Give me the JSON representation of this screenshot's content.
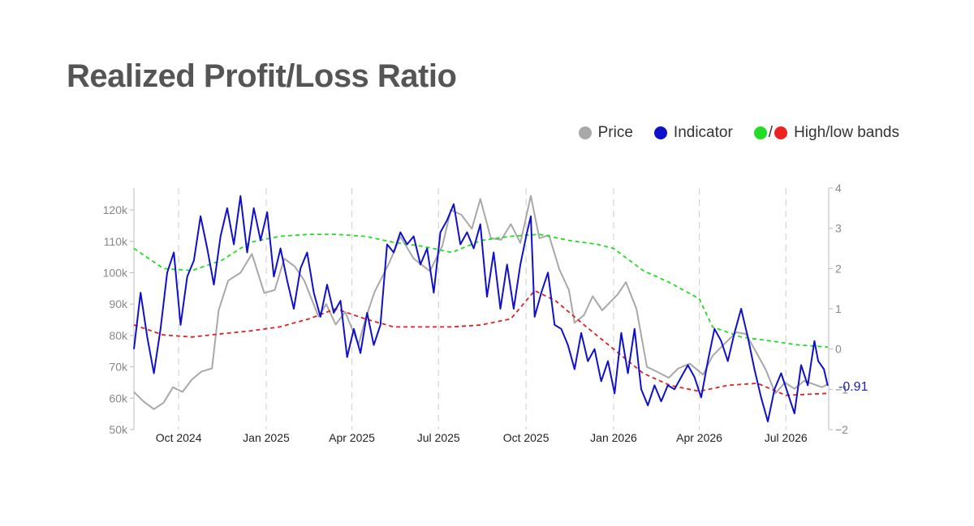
{
  "title": "Realized Profit/Loss Ratio",
  "legend": {
    "price_label": "Price",
    "indicator_label": "Indicator",
    "bands_label": "High/low bands",
    "bands_separator": "/"
  },
  "colors": {
    "price": "#a8a8a8",
    "indicator": "#1010cc",
    "high_band": "#22dd22",
    "low_band": "#dd2222",
    "axis": "#bbbbbb",
    "grid": "#d4d4d4"
  },
  "chart_data": {
    "type": "line",
    "x_ticks": [
      "Oct 2024",
      "Jan 2025",
      "Apr 2025",
      "Jul 2025",
      "Oct 2025",
      "Jan 2026",
      "Apr 2026",
      "Jul 2026"
    ],
    "y_left_ticks": [
      "50k",
      "60k",
      "70k",
      "80k",
      "90k",
      "100k",
      "110k",
      "120k"
    ],
    "y_left_range": [
      50000,
      127000
    ],
    "y_right_ticks": [
      "−2",
      "−1",
      "0",
      "1",
      "2",
      "3",
      "4"
    ],
    "y_right_range": [
      -2,
      4
    ],
    "x_range": [
      "2024-08-15",
      "2026-08-15"
    ],
    "grid": "vertical dashed at x ticks",
    "legend_position": "top-right",
    "end_label": "-0.91",
    "series": [
      {
        "name": "Price",
        "axis": "left",
        "points": [
          [
            "2024-08-15",
            62000
          ],
          [
            "2024-08-25",
            59000
          ],
          [
            "2024-09-05",
            56500
          ],
          [
            "2024-09-15",
            58500
          ],
          [
            "2024-09-25",
            63500
          ],
          [
            "2024-10-05",
            62000
          ],
          [
            "2024-10-15",
            66000
          ],
          [
            "2024-10-25",
            68500
          ],
          [
            "2024-11-05",
            69500
          ],
          [
            "2024-11-12",
            88000
          ],
          [
            "2024-11-22",
            97500
          ],
          [
            "2024-12-05",
            100000
          ],
          [
            "2024-12-17",
            106000
          ],
          [
            "2024-12-30",
            93500
          ],
          [
            "2025-01-10",
            94500
          ],
          [
            "2025-01-20",
            104500
          ],
          [
            "2025-01-31",
            102000
          ],
          [
            "2025-02-10",
            97500
          ],
          [
            "2025-02-25",
            86000
          ],
          [
            "2025-03-05",
            90000
          ],
          [
            "2025-03-15",
            83500
          ],
          [
            "2025-03-25",
            87500
          ],
          [
            "2025-04-08",
            77000
          ],
          [
            "2025-04-15",
            85000
          ],
          [
            "2025-04-25",
            94000
          ],
          [
            "2025-05-10",
            103000
          ],
          [
            "2025-05-22",
            111500
          ],
          [
            "2025-06-05",
            104500
          ],
          [
            "2025-06-22",
            100500
          ],
          [
            "2025-07-05",
            108500
          ],
          [
            "2025-07-14",
            120000
          ],
          [
            "2025-07-25",
            118500
          ],
          [
            "2025-08-05",
            114000
          ],
          [
            "2025-08-14",
            123500
          ],
          [
            "2025-08-25",
            111000
          ],
          [
            "2025-09-05",
            110500
          ],
          [
            "2025-09-15",
            115500
          ],
          [
            "2025-09-25",
            109500
          ],
          [
            "2025-10-06",
            124500
          ],
          [
            "2025-10-15",
            111000
          ],
          [
            "2025-10-25",
            112000
          ],
          [
            "2025-11-05",
            101000
          ],
          [
            "2025-11-15",
            94500
          ],
          [
            "2025-11-21",
            84000
          ],
          [
            "2025-12-01",
            86500
          ],
          [
            "2025-12-10",
            92500
          ],
          [
            "2025-12-20",
            88000
          ],
          [
            "2026-01-05",
            93000
          ],
          [
            "2026-01-14",
            97000
          ],
          [
            "2026-01-25",
            88500
          ],
          [
            "2026-02-05",
            70000
          ],
          [
            "2026-02-15",
            68500
          ],
          [
            "2026-02-28",
            66500
          ],
          [
            "2026-03-10",
            69500
          ],
          [
            "2026-03-22",
            71000
          ],
          [
            "2026-04-05",
            67500
          ],
          [
            "2026-04-15",
            73500
          ],
          [
            "2026-04-28",
            77500
          ],
          [
            "2026-05-10",
            81000
          ],
          [
            "2026-05-20",
            80500
          ],
          [
            "2026-06-01",
            74000
          ],
          [
            "2026-06-10",
            69000
          ],
          [
            "2026-06-20",
            61500
          ],
          [
            "2026-06-30",
            65000
          ],
          [
            "2026-07-10",
            63000
          ],
          [
            "2026-07-20",
            65500
          ],
          [
            "2026-07-30",
            64500
          ],
          [
            "2026-08-08",
            63500
          ],
          [
            "2026-08-14",
            64500
          ]
        ]
      },
      {
        "name": "Indicator",
        "axis": "right",
        "points": [
          [
            "2024-08-15",
            0.0
          ],
          [
            "2024-08-22",
            1.4
          ],
          [
            "2024-08-29",
            0.3
          ],
          [
            "2024-09-05",
            -0.6
          ],
          [
            "2024-09-12",
            0.5
          ],
          [
            "2024-09-19",
            1.9
          ],
          [
            "2024-09-26",
            2.4
          ],
          [
            "2024-10-03",
            0.6
          ],
          [
            "2024-10-10",
            1.8
          ],
          [
            "2024-10-17",
            2.2
          ],
          [
            "2024-10-24",
            3.3
          ],
          [
            "2024-10-31",
            2.5
          ],
          [
            "2024-11-07",
            1.6
          ],
          [
            "2024-11-14",
            2.8
          ],
          [
            "2024-11-21",
            3.5
          ],
          [
            "2024-11-28",
            2.6
          ],
          [
            "2024-12-05",
            3.8
          ],
          [
            "2024-12-12",
            2.4
          ],
          [
            "2024-12-19",
            3.5
          ],
          [
            "2024-12-26",
            2.7
          ],
          [
            "2025-01-02",
            3.4
          ],
          [
            "2025-01-09",
            1.8
          ],
          [
            "2025-01-16",
            2.5
          ],
          [
            "2025-01-23",
            1.7
          ],
          [
            "2025-01-30",
            1.0
          ],
          [
            "2025-02-06",
            2.0
          ],
          [
            "2025-02-13",
            2.4
          ],
          [
            "2025-02-20",
            1.4
          ],
          [
            "2025-02-27",
            0.8
          ],
          [
            "2025-03-06",
            1.6
          ],
          [
            "2025-03-13",
            0.9
          ],
          [
            "2025-03-20",
            1.2
          ],
          [
            "2025-03-27",
            -0.2
          ],
          [
            "2025-04-03",
            0.5
          ],
          [
            "2025-04-10",
            -0.1
          ],
          [
            "2025-04-17",
            0.9
          ],
          [
            "2025-04-24",
            0.1
          ],
          [
            "2025-05-01",
            0.6
          ],
          [
            "2025-05-08",
            2.6
          ],
          [
            "2025-05-15",
            2.4
          ],
          [
            "2025-05-22",
            2.9
          ],
          [
            "2025-05-29",
            2.6
          ],
          [
            "2025-06-05",
            2.8
          ],
          [
            "2025-06-12",
            2.1
          ],
          [
            "2025-06-19",
            2.5
          ],
          [
            "2025-06-26",
            1.4
          ],
          [
            "2025-07-03",
            2.9
          ],
          [
            "2025-07-10",
            3.2
          ],
          [
            "2025-07-17",
            3.6
          ],
          [
            "2025-07-24",
            2.6
          ],
          [
            "2025-07-31",
            2.9
          ],
          [
            "2025-08-07",
            2.5
          ],
          [
            "2025-08-14",
            3.1
          ],
          [
            "2025-08-21",
            1.3
          ],
          [
            "2025-08-28",
            2.4
          ],
          [
            "2025-09-04",
            1.0
          ],
          [
            "2025-09-11",
            2.1
          ],
          [
            "2025-09-18",
            1.0
          ],
          [
            "2025-09-25",
            2.1
          ],
          [
            "2025-10-02",
            2.9
          ],
          [
            "2025-10-06",
            3.3
          ],
          [
            "2025-10-10",
            0.8
          ],
          [
            "2025-10-17",
            1.4
          ],
          [
            "2025-10-24",
            1.9
          ],
          [
            "2025-10-31",
            0.6
          ],
          [
            "2025-11-07",
            0.5
          ],
          [
            "2025-11-14",
            0.1
          ],
          [
            "2025-11-21",
            -0.5
          ],
          [
            "2025-11-28",
            0.4
          ],
          [
            "2025-12-05",
            -0.3
          ],
          [
            "2025-12-12",
            0.0
          ],
          [
            "2025-12-19",
            -0.8
          ],
          [
            "2025-12-26",
            -0.3
          ],
          [
            "2026-01-02",
            -1.1
          ],
          [
            "2026-01-09",
            0.4
          ],
          [
            "2026-01-16",
            -0.6
          ],
          [
            "2026-01-23",
            0.5
          ],
          [
            "2026-01-30",
            -1.0
          ],
          [
            "2026-02-06",
            -1.4
          ],
          [
            "2026-02-13",
            -0.9
          ],
          [
            "2026-02-20",
            -1.3
          ],
          [
            "2026-02-27",
            -0.9
          ],
          [
            "2026-03-06",
            -1.0
          ],
          [
            "2026-03-13",
            -0.7
          ],
          [
            "2026-03-20",
            -0.4
          ],
          [
            "2026-03-27",
            -0.7
          ],
          [
            "2026-04-03",
            -1.2
          ],
          [
            "2026-04-10",
            -0.3
          ],
          [
            "2026-04-17",
            0.5
          ],
          [
            "2026-04-24",
            0.2
          ],
          [
            "2026-05-01",
            -0.3
          ],
          [
            "2026-05-08",
            0.4
          ],
          [
            "2026-05-15",
            1.0
          ],
          [
            "2026-05-22",
            0.3
          ],
          [
            "2026-05-29",
            -0.5
          ],
          [
            "2026-06-05",
            -1.2
          ],
          [
            "2026-06-12",
            -1.8
          ],
          [
            "2026-06-19",
            -1.0
          ],
          [
            "2026-06-26",
            -0.6
          ],
          [
            "2026-07-03",
            -1.1
          ],
          [
            "2026-07-10",
            -1.6
          ],
          [
            "2026-07-17",
            -0.4
          ],
          [
            "2026-07-24",
            -0.9
          ],
          [
            "2026-07-31",
            0.2
          ],
          [
            "2026-08-04",
            -0.3
          ],
          [
            "2026-08-10",
            -0.5
          ],
          [
            "2026-08-14",
            -0.91
          ]
        ]
      },
      {
        "name": "High band",
        "axis": "right",
        "style": "dashed",
        "points": [
          [
            "2024-08-15",
            2.5
          ],
          [
            "2024-09-15",
            2.0
          ],
          [
            "2024-10-15",
            1.95
          ],
          [
            "2024-11-15",
            2.2
          ],
          [
            "2024-12-15",
            2.65
          ],
          [
            "2025-01-15",
            2.8
          ],
          [
            "2025-02-15",
            2.85
          ],
          [
            "2025-03-15",
            2.85
          ],
          [
            "2025-04-15",
            2.8
          ],
          [
            "2025-05-15",
            2.65
          ],
          [
            "2025-06-15",
            2.55
          ],
          [
            "2025-07-15",
            2.4
          ],
          [
            "2025-08-15",
            2.7
          ],
          [
            "2025-09-15",
            2.8
          ],
          [
            "2025-10-15",
            2.85
          ],
          [
            "2025-11-15",
            2.7
          ],
          [
            "2025-12-15",
            2.6
          ],
          [
            "2026-01-01",
            2.5
          ],
          [
            "2026-02-01",
            1.95
          ],
          [
            "2026-03-01",
            1.65
          ],
          [
            "2026-04-01",
            1.25
          ],
          [
            "2026-04-15",
            0.55
          ],
          [
            "2026-05-15",
            0.3
          ],
          [
            "2026-06-15",
            0.2
          ],
          [
            "2026-07-15",
            0.1
          ],
          [
            "2026-08-14",
            0.05
          ]
        ]
      },
      {
        "name": "Low band",
        "axis": "right",
        "style": "dashed",
        "points": [
          [
            "2024-08-15",
            0.6
          ],
          [
            "2024-09-15",
            0.35
          ],
          [
            "2024-10-15",
            0.3
          ],
          [
            "2024-11-15",
            0.38
          ],
          [
            "2024-12-15",
            0.45
          ],
          [
            "2025-01-15",
            0.55
          ],
          [
            "2025-02-15",
            0.75
          ],
          [
            "2025-03-15",
            1.0
          ],
          [
            "2025-04-15",
            0.75
          ],
          [
            "2025-05-15",
            0.55
          ],
          [
            "2025-06-15",
            0.55
          ],
          [
            "2025-07-15",
            0.55
          ],
          [
            "2025-08-15",
            0.6
          ],
          [
            "2025-09-15",
            0.75
          ],
          [
            "2025-10-10",
            1.45
          ],
          [
            "2025-11-01",
            1.2
          ],
          [
            "2025-12-01",
            0.6
          ],
          [
            "2026-01-01",
            0.0
          ],
          [
            "2026-02-01",
            -0.6
          ],
          [
            "2026-03-01",
            -0.9
          ],
          [
            "2026-04-01",
            -1.05
          ],
          [
            "2026-05-01",
            -0.9
          ],
          [
            "2026-06-01",
            -0.85
          ],
          [
            "2026-07-01",
            -1.15
          ],
          [
            "2026-08-14",
            -1.1
          ]
        ]
      }
    ]
  }
}
